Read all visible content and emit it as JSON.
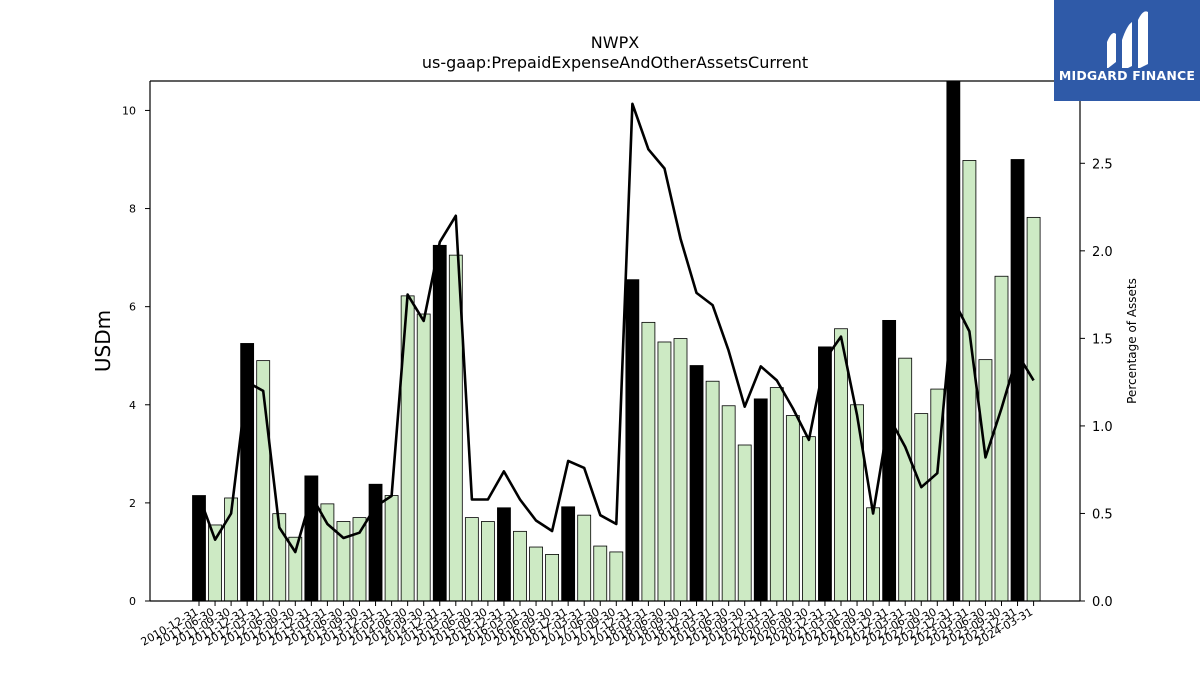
{
  "brand": {
    "name": "MIDGARD FINANCE",
    "logo_icon": "midgard-bars-icon",
    "background_color": "#2f5aa8"
  },
  "chart_data": {
    "type": "bar",
    "title": "NWPX",
    "subtitle": "us-gaap:PrepaidExpenseAndOtherAssetsCurrent",
    "ylabel": "USDm",
    "y2label": "Percentage of Assets",
    "ylim": [
      0,
      10.6
    ],
    "y2lim": [
      0,
      2.97
    ],
    "yticks": [
      0,
      2,
      4,
      6,
      8,
      10
    ],
    "y2ticks": [
      "0.0",
      "0.5",
      "1.0",
      "1.5",
      "2.0",
      "2.5"
    ],
    "grid": false,
    "colors": {
      "annual_bar": "#000000",
      "quarter_bar": "#cdeac4",
      "line": "#000000"
    },
    "categories": [
      "2010-12-31",
      "2011-06-30",
      "2011-09-30",
      "2011-12-31",
      "2012-03-31",
      "2012-06-30",
      "2012-09-30",
      "2012-12-31",
      "2013-03-31",
      "2013-06-30",
      "2013-09-30",
      "2013-12-31",
      "2014-03-31",
      "2014-06-30",
      "2014-09-30",
      "2014-12-31",
      "2015-03-31",
      "2015-06-30",
      "2015-09-30",
      "2015-12-31",
      "2016-03-31",
      "2016-06-30",
      "2016-09-30",
      "2016-12-31",
      "2017-03-31",
      "2017-06-30",
      "2017-09-30",
      "2017-12-31",
      "2018-03-31",
      "2018-06-30",
      "2018-09-30",
      "2018-12-31",
      "2019-03-31",
      "2019-06-30",
      "2019-09-30",
      "2019-12-31",
      "2020-03-31",
      "2020-06-30",
      "2020-09-30",
      "2020-12-31",
      "2021-03-31",
      "2021-06-30",
      "2021-09-30",
      "2021-12-31",
      "2022-03-31",
      "2022-06-30",
      "2022-09-30",
      "2022-12-31",
      "2023-03-31",
      "2023-06-30",
      "2023-09-30",
      "2023-12-31",
      "2024-03-31"
    ],
    "annual_flags": [
      1,
      0,
      0,
      1,
      0,
      0,
      0,
      1,
      0,
      0,
      0,
      1,
      0,
      0,
      0,
      1,
      0,
      0,
      0,
      1,
      0,
      0,
      0,
      1,
      0,
      0,
      0,
      1,
      0,
      0,
      0,
      1,
      0,
      0,
      0,
      1,
      0,
      0,
      0,
      1,
      0,
      0,
      0,
      1,
      0,
      0,
      0,
      1,
      0,
      0,
      0,
      1,
      0
    ],
    "series": [
      {
        "name": "USDm",
        "values": [
          2.15,
          1.55,
          2.1,
          5.25,
          4.9,
          1.78,
          1.3,
          2.55,
          1.98,
          1.62,
          1.7,
          2.38,
          2.15,
          6.22,
          5.85,
          7.25,
          7.05,
          1.7,
          1.62,
          1.9,
          1.42,
          1.1,
          0.95,
          1.92,
          1.75,
          1.12,
          1.0,
          6.55,
          5.68,
          5.28,
          5.35,
          4.8,
          4.48,
          3.98,
          3.18,
          4.12,
          4.35,
          3.78,
          3.35,
          5.18,
          5.55,
          4.0,
          1.9,
          5.72,
          4.95,
          3.82,
          4.32,
          10.65,
          8.98,
          4.92,
          6.62,
          9.0,
          7.82
        ]
      },
      {
        "name": "Percentage of Assets",
        "values": [
          0.6,
          0.35,
          0.5,
          1.25,
          1.2,
          0.42,
          0.28,
          0.6,
          0.44,
          0.36,
          0.39,
          0.54,
          0.6,
          1.75,
          1.6,
          2.05,
          2.2,
          0.58,
          0.58,
          0.74,
          0.58,
          0.46,
          0.4,
          0.8,
          0.76,
          0.49,
          0.44,
          2.84,
          2.58,
          2.47,
          2.07,
          1.76,
          1.69,
          1.43,
          1.11,
          1.34,
          1.26,
          1.1,
          0.92,
          1.38,
          1.51,
          1.06,
          0.5,
          1.05,
          0.88,
          0.65,
          0.73,
          1.72,
          1.54,
          0.82,
          1.1,
          1.41,
          1.26
        ]
      }
    ]
  }
}
